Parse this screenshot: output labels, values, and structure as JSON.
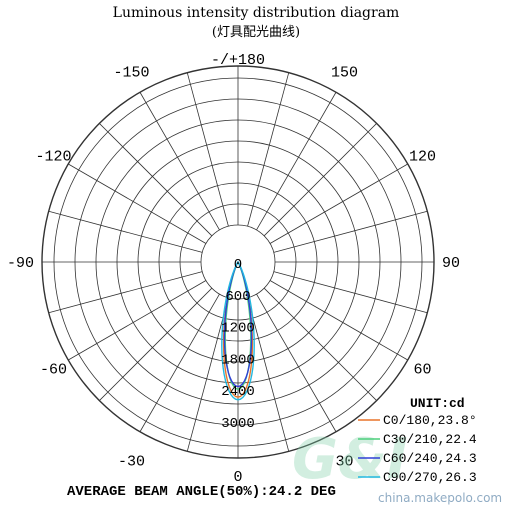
{
  "chart_data": {
    "type": "polar",
    "title": "Luminous intensity distribution diagram",
    "subtitle": "(灯具配光曲线)",
    "unit_label": "UNIT:cd",
    "radial_ticks": [
      "0",
      "600",
      "1200",
      "1800",
      "2400",
      "3000"
    ],
    "r_max": 3000,
    "angle_labels": [
      {
        "text": "-/+180",
        "angle": 180
      },
      {
        "text": "-150",
        "angle": -150
      },
      {
        "text": "150",
        "angle": 150
      },
      {
        "text": "-120",
        "angle": -120
      },
      {
        "text": "120",
        "angle": 120
      },
      {
        "text": "-90",
        "angle": -90
      },
      {
        "text": "90",
        "angle": 90
      },
      {
        "text": "-60",
        "angle": -60
      },
      {
        "text": "60",
        "angle": 60
      },
      {
        "text": "-30",
        "angle": -30
      },
      {
        "text": "30",
        "angle": 30
      },
      {
        "text": "0",
        "angle": 0
      }
    ],
    "series": [
      {
        "name": "C0/180,23.8°",
        "color": "#e8742a",
        "peak": 2550,
        "beam_angle": 23.8
      },
      {
        "name": "C30/210,22.4",
        "color": "#4ccf7c",
        "peak": 2400,
        "beam_angle": 22.4
      },
      {
        "name": "C60/240,24.3",
        "color": "#2f3fd6",
        "peak": 2350,
        "beam_angle": 24.3
      },
      {
        "name": "C90/270,26.3",
        "color": "#22b8e0",
        "peak": 2600,
        "beam_angle": 26.3
      }
    ],
    "footer": "AVERAGE BEAM ANGLE(50%):24.2 DEG"
  },
  "watermark": {
    "logo_text": "G&I",
    "site": "china.makepolo.com"
  }
}
